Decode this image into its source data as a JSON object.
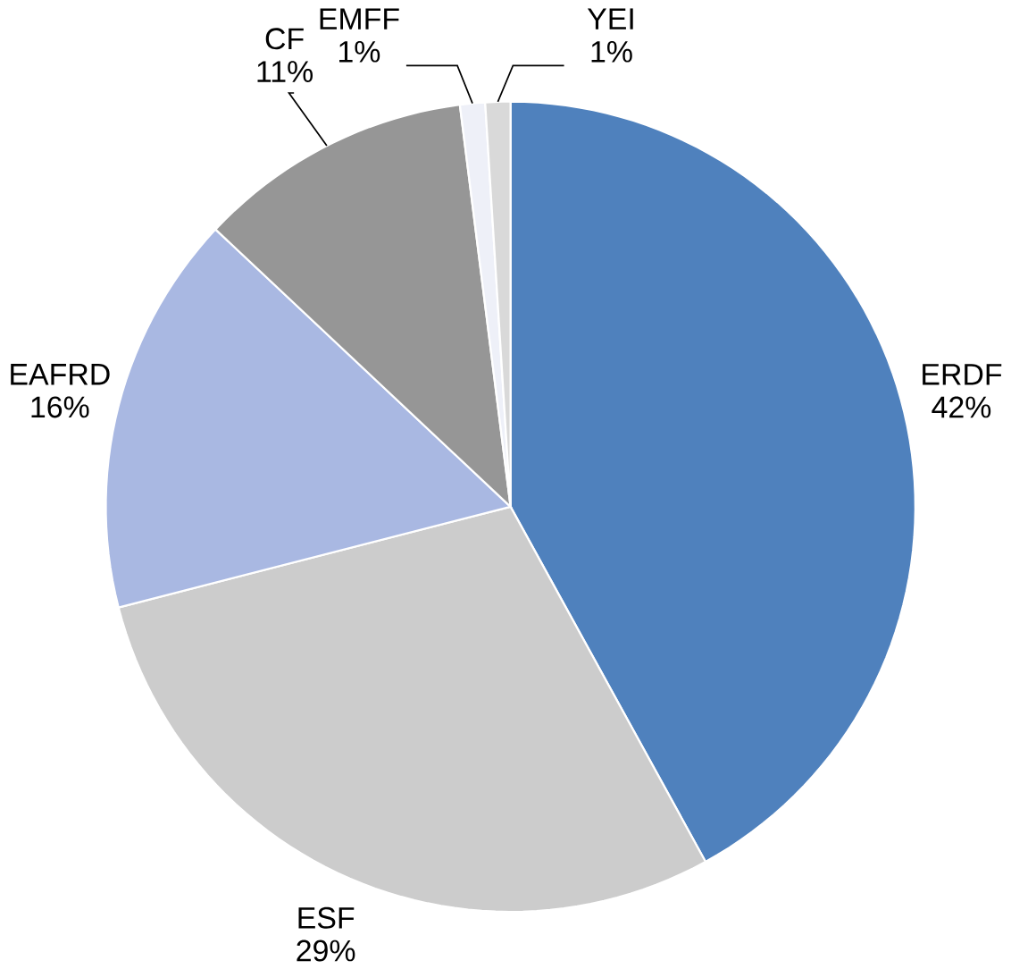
{
  "chart_data": {
    "type": "pie",
    "categories": [
      "ERDF",
      "ESF",
      "EAFRD",
      "CF",
      "EMFF",
      "YEI"
    ],
    "values": [
      42,
      29,
      16,
      11,
      1,
      1
    ],
    "value_labels": [
      "42%",
      "29%",
      "16%",
      "11%",
      "1%",
      "1%"
    ],
    "colors": [
      "#4f81bd",
      "#cccccc",
      "#a9b8e2",
      "#969696",
      "#eef0f8",
      "#d9d9d9"
    ]
  }
}
